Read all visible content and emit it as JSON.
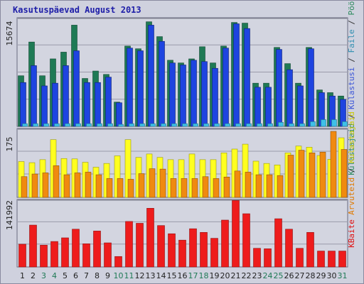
{
  "title": "Kasutuspäevad August 2013",
  "legend_right": {
    "top": [
      {
        "text": "Külastajaid",
        "color": "#2b8a5c"
      },
      {
        "text": " / ",
        "color": "#333333"
      },
      {
        "text": "Külastusi",
        "color": "#3a55d8"
      },
      {
        "text": " / ",
        "color": "#333333"
      },
      {
        "text": "Faile",
        "color": "#2d8eb0"
      },
      {
        "text": " / ",
        "color": "#333333"
      },
      {
        "text": "Pöördumisi",
        "color": "#2b8a5c"
      }
    ],
    "middle": [
      {
        "text": "Arvuteid",
        "color": "#e07a00"
      },
      {
        "text": " / ",
        "color": "#333333"
      },
      {
        "text": "Külastajaid",
        "color": "#c8c800"
      }
    ],
    "bottom": [
      {
        "text": "KBaite",
        "color": "#e01010"
      }
    ]
  },
  "colors": {
    "hits": "#1f7a55",
    "files": "#1e44e0",
    "pages": "#3fc0e8",
    "sites": "#f08a10",
    "visits": "#ffff20",
    "kbytes": "#ee1c1c",
    "day_normal": "#222222",
    "day_weekend": "#1f7a55"
  },
  "chart_data": [
    {
      "type": "bar",
      "panel": "top",
      "ylabel": "15674",
      "ymax": 15674,
      "categories": [
        "1",
        "2",
        "3",
        "4",
        "5",
        "6",
        "7",
        "8",
        "9",
        "10",
        "11",
        "12",
        "13",
        "14",
        "15",
        "16",
        "17",
        "18",
        "19",
        "20",
        "21",
        "22",
        "23",
        "24",
        "25",
        "26",
        "27",
        "28",
        "29",
        "30",
        "31"
      ],
      "weekend": [
        false,
        false,
        true,
        true,
        false,
        false,
        false,
        false,
        false,
        true,
        true,
        false,
        false,
        false,
        false,
        false,
        true,
        true,
        false,
        false,
        false,
        false,
        false,
        true,
        true,
        false,
        false,
        false,
        false,
        false,
        true
      ],
      "series": [
        {
          "name": "Pöördumisi",
          "values": [
            7500,
            12500,
            7500,
            10000,
            11000,
            15000,
            7100,
            8200,
            7700,
            3600,
            11900,
            11500,
            15500,
            13300,
            9800,
            9400,
            10000,
            11800,
            9400,
            11900,
            15400,
            15300,
            6400,
            6400,
            11700,
            9300,
            6400,
            11700,
            5400,
            5000,
            4500
          ]
        },
        {
          "name": "Faile",
          "values": [
            6500,
            9000,
            6000,
            6400,
            9000,
            11200,
            6500,
            6500,
            7300,
            3500,
            11600,
            11200,
            15000,
            12600,
            9400,
            9100,
            9800,
            9600,
            8600,
            11600,
            15200,
            14500,
            5800,
            5800,
            11400,
            8400,
            6000,
            11500,
            5000,
            4500,
            4000
          ]
        },
        {
          "name": "Külastusi",
          "values": [
            400,
            400,
            400,
            400,
            400,
            400,
            400,
            400,
            400,
            300,
            400,
            400,
            400,
            400,
            400,
            400,
            400,
            400,
            400,
            400,
            400,
            400,
            400,
            400,
            600,
            400,
            400,
            700,
            1000,
            1000,
            700
          ]
        }
      ]
    },
    {
      "type": "bar",
      "panel": "middle",
      "ylabel": "175",
      "ymax": 175,
      "categories": [
        "1",
        "2",
        "3",
        "4",
        "5",
        "6",
        "7",
        "8",
        "9",
        "10",
        "11",
        "12",
        "13",
        "14",
        "15",
        "16",
        "17",
        "18",
        "19",
        "20",
        "21",
        "22",
        "23",
        "24",
        "25",
        "26",
        "27",
        "28",
        "29",
        "30",
        "31"
      ],
      "series": [
        {
          "name": "Külastajaid",
          "values": [
            95,
            92,
            100,
            153,
            103,
            102,
            93,
            80,
            90,
            110,
            153,
            106,
            115,
            106,
            100,
            100,
            115,
            100,
            100,
            118,
            128,
            141,
            96,
            90,
            86,
            118,
            136,
            133,
            111,
            101,
            158
          ]
        },
        {
          "name": "Arvuteid",
          "values": [
            55,
            62,
            65,
            84,
            60,
            65,
            67,
            60,
            50,
            50,
            48,
            63,
            76,
            75,
            50,
            50,
            50,
            55,
            50,
            54,
            70,
            67,
            60,
            60,
            58,
            112,
            125,
            118,
            120,
            175,
            127
          ]
        }
      ]
    },
    {
      "type": "bar",
      "panel": "bottom",
      "ylabel": "141992",
      "ymax": 141992,
      "categories": [
        "1",
        "2",
        "3",
        "4",
        "5",
        "6",
        "7",
        "8",
        "9",
        "10",
        "11",
        "12",
        "13",
        "14",
        "15",
        "16",
        "17",
        "18",
        "19",
        "20",
        "21",
        "22",
        "23",
        "24",
        "25",
        "26",
        "27",
        "28",
        "29",
        "30",
        "31"
      ],
      "series": [
        {
          "name": "KBaite",
          "values": [
            50000,
            92000,
            48000,
            56000,
            64000,
            83000,
            51000,
            79000,
            53000,
            23000,
            100000,
            96000,
            129000,
            91000,
            73000,
            59000,
            84000,
            76000,
            63000,
            103000,
            146000,
            117000,
            41000,
            40000,
            106000,
            83000,
            41000,
            76000,
            35000,
            35000,
            35000
          ]
        }
      ]
    }
  ]
}
